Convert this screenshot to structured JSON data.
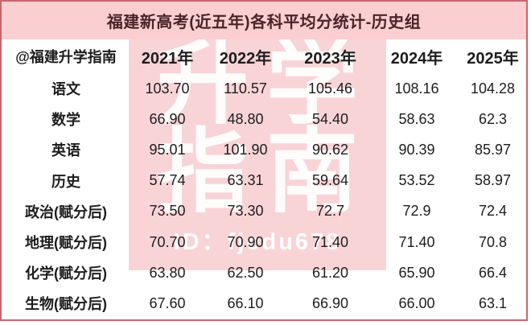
{
  "title": "福建新高考(近五年)各科平均分统计-历史组",
  "table": {
    "corner_label": "@福建升学指南",
    "year_headers": [
      "2021年",
      "2022年",
      "2023年",
      "2024年",
      "2025年"
    ],
    "rows": [
      {
        "label": "语文",
        "values": [
          "103.70",
          "110.57",
          "105.46",
          "108.16",
          "104.28"
        ]
      },
      {
        "label": "数学",
        "values": [
          "66.90",
          "48.80",
          "54.40",
          "58.63",
          "62.3"
        ]
      },
      {
        "label": "英语",
        "values": [
          "95.01",
          "101.90",
          "90.62",
          "90.39",
          "85.97"
        ]
      },
      {
        "label": "历史",
        "values": [
          "57.74",
          "63.31",
          "59.64",
          "53.52",
          "58.97"
        ]
      },
      {
        "label": "政治(赋分后)",
        "values": [
          "73.50",
          "73.30",
          "72.7",
          "72.9",
          "72.4"
        ]
      },
      {
        "label": "地理(赋分后)",
        "values": [
          "70.70",
          "70.90",
          "71.40",
          "71.40",
          "70.8"
        ]
      },
      {
        "label": "化学(赋分后)",
        "values": [
          "63.80",
          "62.50",
          "61.20",
          "65.90",
          "66.4"
        ]
      },
      {
        "label": "生物(赋分后)",
        "values": [
          "67.60",
          "66.10",
          "66.90",
          "66.00",
          "63.1"
        ]
      }
    ]
  },
  "watermark": {
    "line1": "升学",
    "line2": "指南",
    "id_text": "ID：fjedu678"
  },
  "colors": {
    "border": "#c8666b",
    "header_bg": "#fbcfd1",
    "title_color": "#4b2427",
    "watermark_bg": "#f8d4d7",
    "watermark_text": "#ffffff",
    "text": "#1d1d1d"
  },
  "chart_data": {
    "type": "table",
    "title": "福建新高考(近五年)各科平均分统计-历史组",
    "categories": [
      "2021年",
      "2022年",
      "2023年",
      "2024年",
      "2025年"
    ],
    "series": [
      {
        "name": "语文",
        "values": [
          103.7,
          110.57,
          105.46,
          108.16,
          104.28
        ]
      },
      {
        "name": "数学",
        "values": [
          66.9,
          48.8,
          54.4,
          58.63,
          62.3
        ]
      },
      {
        "name": "英语",
        "values": [
          95.01,
          101.9,
          90.62,
          90.39,
          85.97
        ]
      },
      {
        "name": "历史",
        "values": [
          57.74,
          63.31,
          59.64,
          53.52,
          58.97
        ]
      },
      {
        "name": "政治(赋分后)",
        "values": [
          73.5,
          73.3,
          72.7,
          72.9,
          72.4
        ]
      },
      {
        "name": "地理(赋分后)",
        "values": [
          70.7,
          70.9,
          71.4,
          71.4,
          70.8
        ]
      },
      {
        "name": "化学(赋分后)",
        "values": [
          63.8,
          62.5,
          61.2,
          65.9,
          66.4
        ]
      },
      {
        "name": "生物(赋分后)",
        "values": [
          67.6,
          66.1,
          66.9,
          66.0,
          63.1
        ]
      }
    ],
    "layout": {
      "header_row": "years",
      "first_column": "subjects",
      "grid": "off",
      "legend": "none"
    }
  }
}
